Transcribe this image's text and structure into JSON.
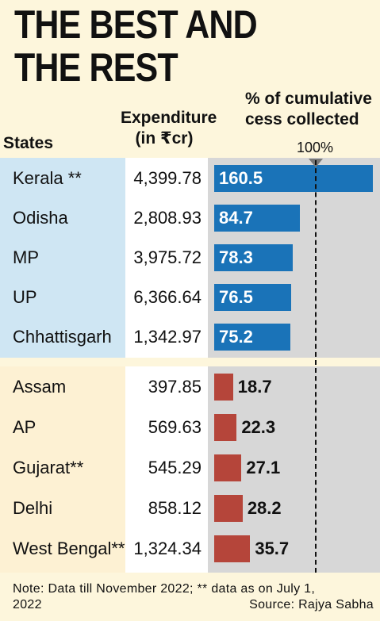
{
  "title_line1": "THE BEST AND",
  "title_line2": "THE REST",
  "headers": {
    "states": "States",
    "expenditure_line1": "Expenditure",
    "expenditure_line2": "(in ₹cr)",
    "cess_line1": "% of cumulative",
    "cess_line2": "cess collected",
    "reference": "100%"
  },
  "note_line1": "Note: Data till November 2022; ** data as on July 1,",
  "note_line2": "2022",
  "source": "Source: Rajya Sabha",
  "colors": {
    "best": "#1a73b8",
    "rest": "#b5453a",
    "band_best": "#cfe6f3",
    "background": "#fdf6dc"
  },
  "chart_data": {
    "type": "bar",
    "orientation": "horizontal",
    "reference_value": 100,
    "groups": [
      {
        "rows": [
          {
            "state": "Kerala **",
            "expenditure": "4,399.78",
            "cess_pct": 160.5
          },
          {
            "state": "Odisha",
            "expenditure": "2,808.93",
            "cess_pct": 84.7
          },
          {
            "state": "MP",
            "expenditure": "3,975.72",
            "cess_pct": 78.3
          },
          {
            "state": "UP",
            "expenditure": "6,366.64",
            "cess_pct": 76.5
          },
          {
            "state": "Chhattisgarh",
            "expenditure": "1,342.97",
            "cess_pct": 75.2
          }
        ]
      },
      {
        "rows": [
          {
            "state": "Assam",
            "expenditure": "397.85",
            "cess_pct": 18.7
          },
          {
            "state": "AP",
            "expenditure": "569.63",
            "cess_pct": 22.3
          },
          {
            "state": "Gujarat**",
            "expenditure": "545.29",
            "cess_pct": 27.1
          },
          {
            "state": "Delhi",
            "expenditure": "858.12",
            "cess_pct": 28.2
          },
          {
            "state": "West Bengal**",
            "expenditure": "1,324.34",
            "cess_pct": 35.7
          }
        ]
      }
    ]
  }
}
